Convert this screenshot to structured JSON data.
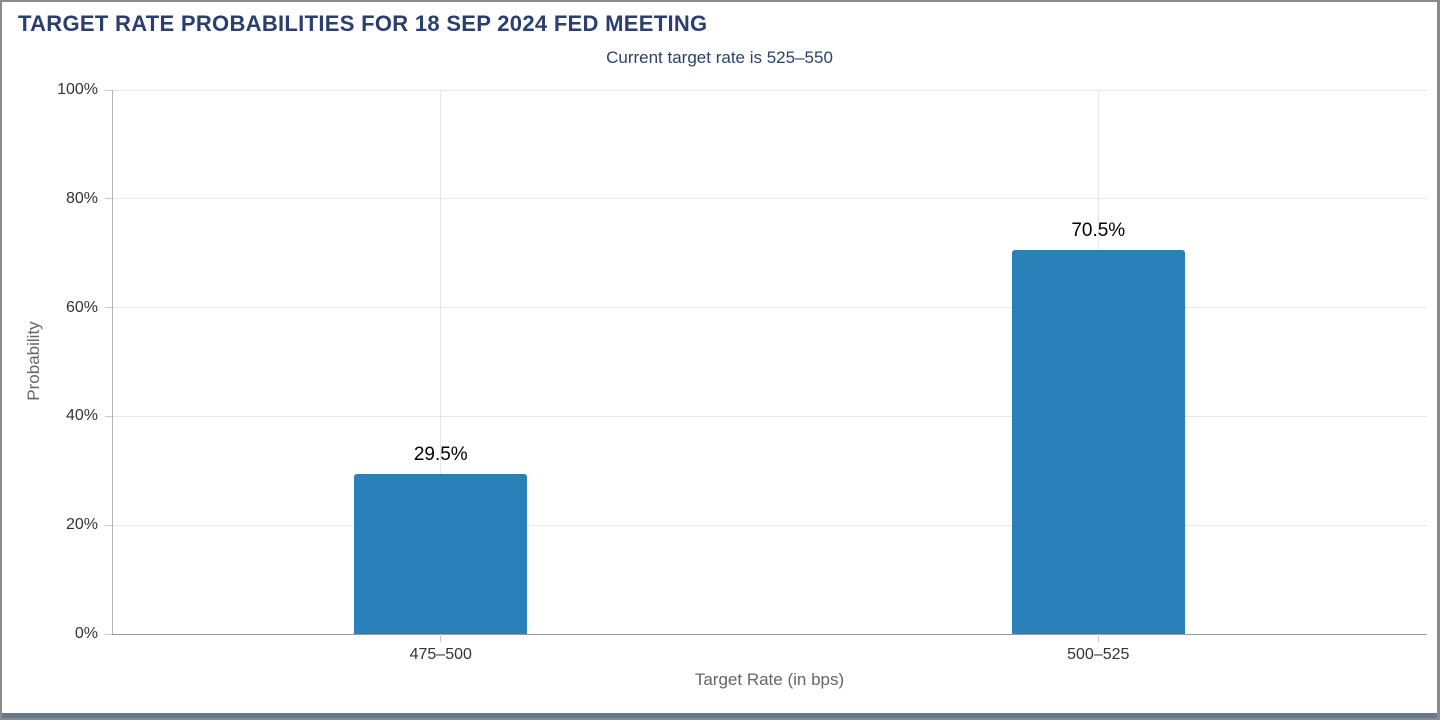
{
  "window": {
    "border_color": "#8A8A8A",
    "bottom_edge_color": "#68798B"
  },
  "chart_data": {
    "type": "bar",
    "title": "TARGET RATE PROBABILITIES FOR 18 SEP 2024 FED MEETING",
    "subtitle": "Current target rate is 525–550",
    "categories": [
      "475–500",
      "500–525"
    ],
    "values": [
      29.5,
      70.5
    ],
    "data_labels": [
      "29.5%",
      "70.5%"
    ],
    "xlabel": "Target Rate (in bps)",
    "ylabel": "Probability",
    "ylim": [
      0,
      100
    ],
    "yticks": [
      0,
      20,
      40,
      60,
      80,
      100
    ],
    "ytick_labels": [
      "0%",
      "20%",
      "40%",
      "60%",
      "80%",
      "100%"
    ],
    "grid": true,
    "legend": "none",
    "colors": {
      "bar": "#2A80B9",
      "title_text": "#2A3F6E",
      "axis_tick_text": "#333333",
      "axis_title_text": "#666666",
      "gridline": "#E6E6E6",
      "axis_line": "#999999",
      "tick_mark": "#C8C8C8",
      "data_label_text": "#000000"
    }
  }
}
